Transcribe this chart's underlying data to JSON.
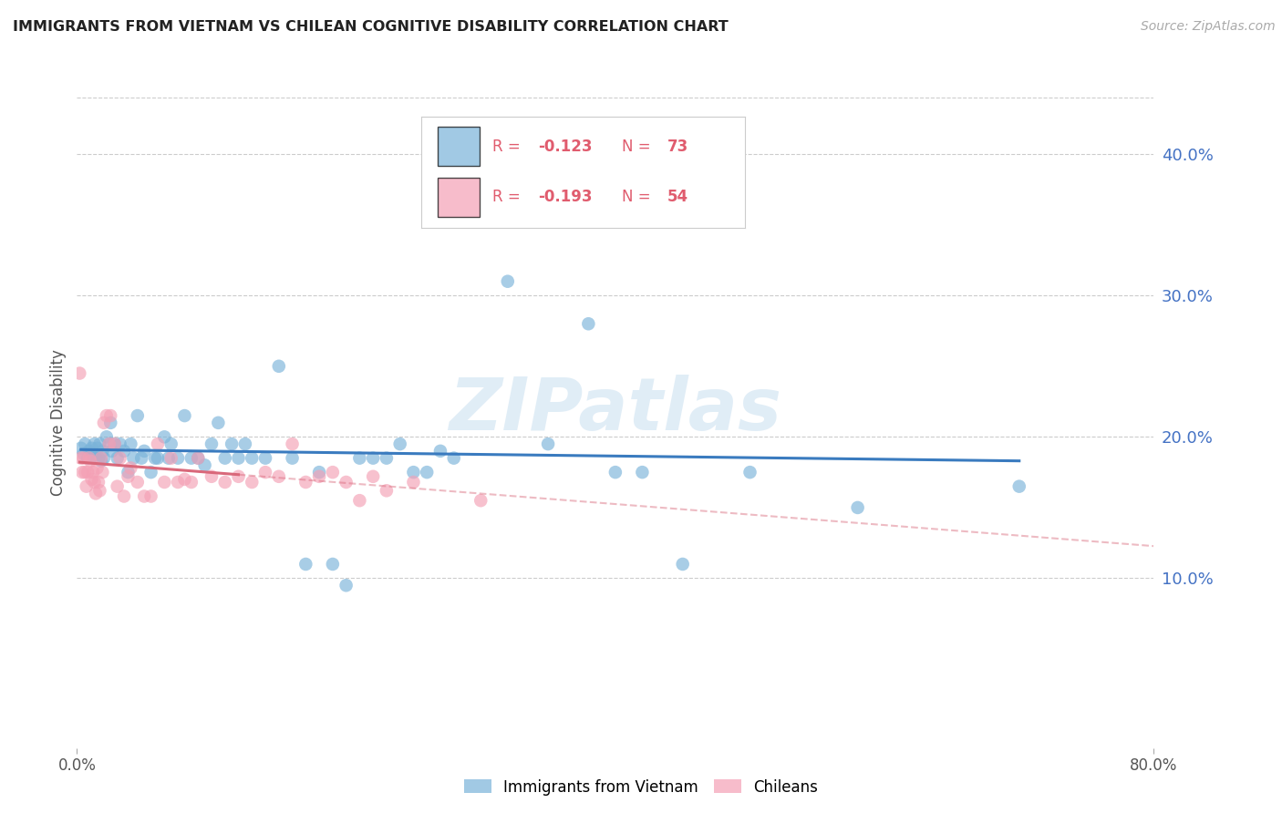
{
  "title": "IMMIGRANTS FROM VIETNAM VS CHILEAN COGNITIVE DISABILITY CORRELATION CHART",
  "source": "Source: ZipAtlas.com",
  "ylabel": "Cognitive Disability",
  "ytick_labels": [
    "40.0%",
    "30.0%",
    "20.0%",
    "10.0%"
  ],
  "ytick_values": [
    0.4,
    0.3,
    0.2,
    0.1
  ],
  "xlim": [
    0.0,
    0.8
  ],
  "ylim": [
    -0.02,
    0.44
  ],
  "legend1_r": "R = -0.123",
  "legend1_n": "N = 73",
  "legend2_r": "R = -0.193",
  "legend2_n": "N = 54",
  "color_blue": "#7ab3d9",
  "color_pink": "#f4a0b5",
  "color_line_blue": "#3a7bbf",
  "color_line_pink": "#d9687a",
  "watermark": "ZIPatlas",
  "vietnam_x": [
    0.003,
    0.005,
    0.006,
    0.008,
    0.009,
    0.01,
    0.011,
    0.012,
    0.013,
    0.014,
    0.015,
    0.016,
    0.017,
    0.018,
    0.019,
    0.02,
    0.022,
    0.024,
    0.025,
    0.026,
    0.028,
    0.03,
    0.032,
    0.035,
    0.038,
    0.04,
    0.042,
    0.045,
    0.048,
    0.05,
    0.055,
    0.058,
    0.06,
    0.065,
    0.068,
    0.07,
    0.075,
    0.08,
    0.085,
    0.09,
    0.095,
    0.1,
    0.105,
    0.11,
    0.115,
    0.12,
    0.125,
    0.13,
    0.14,
    0.15,
    0.16,
    0.17,
    0.18,
    0.19,
    0.2,
    0.21,
    0.22,
    0.23,
    0.24,
    0.25,
    0.26,
    0.27,
    0.28,
    0.3,
    0.32,
    0.35,
    0.38,
    0.4,
    0.42,
    0.45,
    0.5,
    0.58,
    0.7
  ],
  "vietnam_y": [
    0.192,
    0.188,
    0.195,
    0.185,
    0.19,
    0.188,
    0.192,
    0.185,
    0.195,
    0.185,
    0.192,
    0.185,
    0.195,
    0.183,
    0.19,
    0.185,
    0.2,
    0.195,
    0.21,
    0.19,
    0.195,
    0.185,
    0.195,
    0.19,
    0.175,
    0.195,
    0.185,
    0.215,
    0.185,
    0.19,
    0.175,
    0.185,
    0.185,
    0.2,
    0.185,
    0.195,
    0.185,
    0.215,
    0.185,
    0.185,
    0.18,
    0.195,
    0.21,
    0.185,
    0.195,
    0.185,
    0.195,
    0.185,
    0.185,
    0.25,
    0.185,
    0.11,
    0.175,
    0.11,
    0.095,
    0.185,
    0.185,
    0.185,
    0.195,
    0.175,
    0.175,
    0.19,
    0.185,
    0.36,
    0.31,
    0.195,
    0.28,
    0.175,
    0.175,
    0.11,
    0.175,
    0.15,
    0.165
  ],
  "chilean_x": [
    0.002,
    0.003,
    0.004,
    0.005,
    0.006,
    0.007,
    0.008,
    0.009,
    0.01,
    0.011,
    0.012,
    0.013,
    0.014,
    0.015,
    0.016,
    0.017,
    0.018,
    0.019,
    0.02,
    0.022,
    0.024,
    0.025,
    0.028,
    0.03,
    0.032,
    0.035,
    0.038,
    0.04,
    0.045,
    0.05,
    0.055,
    0.06,
    0.065,
    0.07,
    0.075,
    0.08,
    0.085,
    0.09,
    0.1,
    0.11,
    0.12,
    0.13,
    0.14,
    0.15,
    0.16,
    0.17,
    0.18,
    0.19,
    0.2,
    0.21,
    0.22,
    0.23,
    0.25,
    0.3
  ],
  "chilean_y": [
    0.245,
    0.185,
    0.175,
    0.185,
    0.175,
    0.165,
    0.175,
    0.185,
    0.183,
    0.17,
    0.175,
    0.168,
    0.16,
    0.178,
    0.168,
    0.162,
    0.185,
    0.175,
    0.21,
    0.215,
    0.195,
    0.215,
    0.195,
    0.165,
    0.185,
    0.158,
    0.172,
    0.178,
    0.168,
    0.158,
    0.158,
    0.195,
    0.168,
    0.185,
    0.168,
    0.17,
    0.168,
    0.185,
    0.172,
    0.168,
    0.172,
    0.168,
    0.175,
    0.172,
    0.195,
    0.168,
    0.172,
    0.175,
    0.168,
    0.155,
    0.172,
    0.162,
    0.168,
    0.155
  ]
}
